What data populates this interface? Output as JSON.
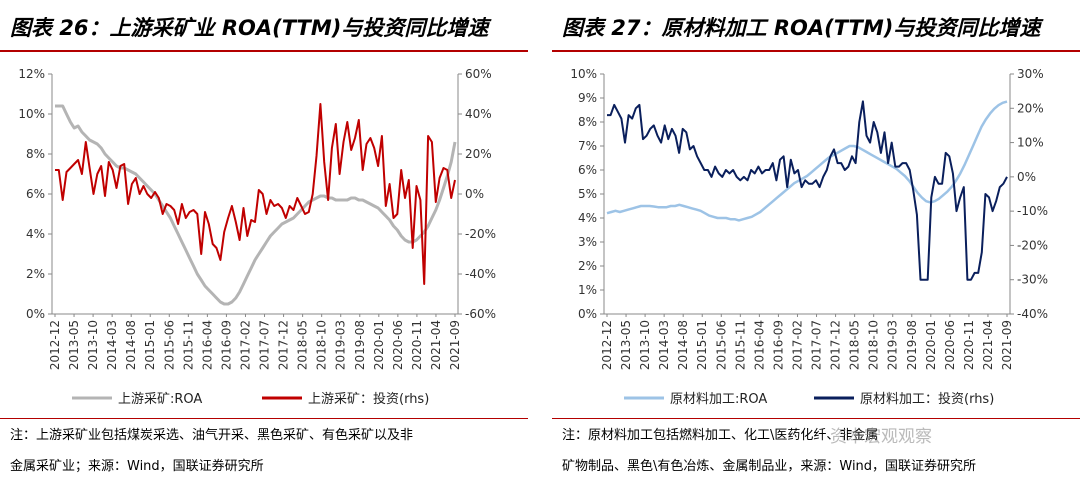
{
  "colors": {
    "red": "#c00000",
    "gray": "#b4b4b4",
    "navy": "#0a1f5c",
    "lightblue": "#9dc3e6",
    "accent": "#b30000"
  },
  "watermark": "资本宏观观察",
  "charts": [
    {
      "title": "图表 26：上游采矿业 ROA(TTM)与投资同比增速",
      "notes": [
        "注：上游采矿业包括煤炭采选、油气开采、黑色采矿、有色采矿以及非",
        "金属采矿业；来源：Wind，国联证券研究所"
      ],
      "chart_data": {
        "type": "line",
        "x_labels": [
          "2012-12",
          "2013-05",
          "2013-10",
          "2014-03",
          "2014-08",
          "2015-01",
          "2015-06",
          "2015-11",
          "2016-04",
          "2016-09",
          "2017-02",
          "2017-07",
          "2017-12",
          "2018-05",
          "2018-10",
          "2019-03",
          "2019-08",
          "2020-01",
          "2020-06",
          "2020-11",
          "2021-04",
          "2021-09"
        ],
        "left_axis": {
          "min": 0,
          "max": 12,
          "step": 2,
          "ticks": [
            "0%",
            "2%",
            "4%",
            "6%",
            "8%",
            "10%",
            "12%"
          ]
        },
        "right_axis": {
          "min": -60,
          "max": 60,
          "step": 20,
          "ticks": [
            "-60%",
            "-40%",
            "-20%",
            "0%",
            "20%",
            "40%",
            "60%"
          ]
        },
        "series": [
          {
            "name": "上游采矿:ROA",
            "axis": "left",
            "color": "#b4b4b4",
            "width": 3,
            "values": [
              10.4,
              10.4,
              10.4,
              10.0,
              9.6,
              9.3,
              9.4,
              9.1,
              8.9,
              8.7,
              8.6,
              8.5,
              8.3,
              8.0,
              7.8,
              7.6,
              7.4,
              7.3,
              7.3,
              7.2,
              7.1,
              7.0,
              6.8,
              6.6,
              6.4,
              6.2,
              6.0,
              5.7,
              5.4,
              5.1,
              4.8,
              4.4,
              4.0,
              3.6,
              3.2,
              2.8,
              2.4,
              2.0,
              1.7,
              1.4,
              1.2,
              1.0,
              0.8,
              0.6,
              0.5,
              0.5,
              0.6,
              0.8,
              1.1,
              1.5,
              1.9,
              2.3,
              2.7,
              3.0,
              3.3,
              3.6,
              3.9,
              4.1,
              4.3,
              4.5,
              4.6,
              4.7,
              4.8,
              5.0,
              5.2,
              5.4,
              5.6,
              5.7,
              5.8,
              5.9,
              5.9,
              5.8,
              5.8,
              5.7,
              5.7,
              5.7,
              5.7,
              5.8,
              5.8,
              5.7,
              5.7,
              5.6,
              5.5,
              5.4,
              5.3,
              5.1,
              4.9,
              4.7,
              4.4,
              4.2,
              3.9,
              3.7,
              3.6,
              3.6,
              3.7,
              3.9,
              4.1,
              4.4,
              4.8,
              5.2,
              5.7,
              6.3,
              6.9,
              7.6,
              8.6
            ]
          },
          {
            "name": "上游采矿：投资(rhs)",
            "axis": "right",
            "color": "#c00000",
            "width": 2,
            "values": [
              12,
              12,
              -3,
              11,
              13,
              15,
              17,
              10,
              26,
              13,
              0,
              10,
              14,
              -1,
              16,
              12,
              3,
              14,
              15,
              -5,
              5,
              8,
              0,
              4,
              0,
              -2,
              1,
              -2,
              -10,
              -5,
              -6,
              -8,
              -15,
              -5,
              -12,
              -9,
              -8,
              -10,
              -30,
              -9,
              -15,
              -25,
              -27,
              -33,
              -19,
              -12,
              -6,
              -14,
              -23,
              -7,
              -21,
              -13,
              -14,
              2,
              0,
              -10,
              -3,
              -6,
              -5,
              -7,
              -12,
              -6,
              -8,
              -2,
              -6,
              -10,
              -9,
              0,
              19,
              45,
              16,
              -3,
              23,
              35,
              10,
              26,
              36,
              22,
              28,
              37,
              12,
              25,
              28,
              23,
              14,
              29,
              -6,
              5,
              -12,
              -10,
              12,
              -2,
              7,
              -27,
              4,
              -3,
              -45,
              29,
              26,
              -4,
              8,
              13,
              12,
              -2,
              7
            ]
          }
        ]
      },
      "legend": [
        "上游采矿:ROA",
        "上游采矿：投资(rhs)"
      ]
    },
    {
      "title": "图表 27：原材料加工 ROA(TTM)与投资同比增速",
      "notes": [
        "注：原材料加工包括燃料加工、化工\\医药化纤、非金属",
        "矿物制品、黑色\\有色冶炼、金属制品业，来源：Wind，国联证券研究所"
      ],
      "chart_data": {
        "type": "line",
        "x_labels": [
          "2012-12",
          "2013-05",
          "2013-10",
          "2014-03",
          "2014-08",
          "2015-01",
          "2015-06",
          "2015-11",
          "2016-04",
          "2016-09",
          "2017-02",
          "2017-07",
          "2017-12",
          "2018-05",
          "2018-10",
          "2019-03",
          "2019-08",
          "2020-01",
          "2020-06",
          "2020-11",
          "2021-04",
          "2021-09"
        ],
        "left_axis": {
          "min": 0,
          "max": 10,
          "step": 1,
          "ticks": [
            "0%",
            "1%",
            "2%",
            "3%",
            "4%",
            "5%",
            "6%",
            "7%",
            "8%",
            "9%",
            "10%"
          ]
        },
        "right_axis": {
          "min": -40,
          "max": 30,
          "step": 10,
          "ticks": [
            "-40%",
            "-30%",
            "-20%",
            "-10%",
            "0%",
            "10%",
            "20%",
            "30%"
          ]
        },
        "series": [
          {
            "name": "原材料加工:ROA",
            "axis": "left",
            "color": "#9dc3e6",
            "width": 2.5,
            "values": [
              4.2,
              4.25,
              4.3,
              4.25,
              4.3,
              4.35,
              4.4,
              4.45,
              4.5,
              4.5,
              4.5,
              4.48,
              4.45,
              4.45,
              4.45,
              4.5,
              4.5,
              4.55,
              4.5,
              4.45,
              4.4,
              4.35,
              4.3,
              4.2,
              4.1,
              4.05,
              4.0,
              4.0,
              4.0,
              3.95,
              3.95,
              3.9,
              3.95,
              4.0,
              4.05,
              4.15,
              4.25,
              4.4,
              4.55,
              4.7,
              4.85,
              5.0,
              5.15,
              5.3,
              5.45,
              5.55,
              5.65,
              5.75,
              5.9,
              6.05,
              6.2,
              6.35,
              6.5,
              6.6,
              6.7,
              6.8,
              6.9,
              7.0,
              7.0,
              6.95,
              6.85,
              6.75,
              6.65,
              6.55,
              6.45,
              6.35,
              6.25,
              6.15,
              6.05,
              5.9,
              5.75,
              5.55,
              5.3,
              5.05,
              4.85,
              4.7,
              4.65,
              4.7,
              4.8,
              4.95,
              5.1,
              5.3,
              5.55,
              5.85,
              6.2,
              6.6,
              7.0,
              7.4,
              7.8,
              8.1,
              8.35,
              8.55,
              8.7,
              8.8,
              8.85
            ]
          },
          {
            "name": "原材料加工：投资(rhs)",
            "axis": "right",
            "color": "#0a1f5c",
            "width": 2,
            "values": [
              18,
              18,
              21,
              19,
              17,
              10,
              18,
              17,
              20,
              21,
              11,
              12,
              14,
              15,
              12,
              10,
              15,
              11,
              14,
              12,
              7,
              14,
              13,
              8,
              9,
              6,
              4,
              2,
              2,
              0,
              3,
              1,
              0,
              2,
              1,
              2,
              0,
              -1,
              0,
              -1,
              2,
              1,
              3,
              1,
              2,
              2,
              4,
              -1,
              5,
              6,
              -3,
              5,
              1,
              2,
              -3,
              -1,
              -2,
              -2,
              -1,
              -3,
              0,
              2,
              6,
              8,
              4,
              4,
              2,
              3,
              6,
              4,
              16,
              22,
              12,
              10,
              16,
              13,
              7,
              13,
              4,
              10,
              3,
              3,
              4,
              4,
              2,
              -4,
              -11,
              -30,
              -30,
              -30,
              -6,
              0,
              -2,
              -2,
              7,
              6,
              1,
              -10,
              -6,
              -3,
              -30,
              -30,
              -28,
              -28,
              -22,
              -5,
              -6,
              -10,
              -7,
              -3,
              -2,
              0
            ]
          }
        ]
      },
      "legend": [
        "原材料加工:ROA",
        "原材料加工：投资(rhs)"
      ]
    }
  ]
}
